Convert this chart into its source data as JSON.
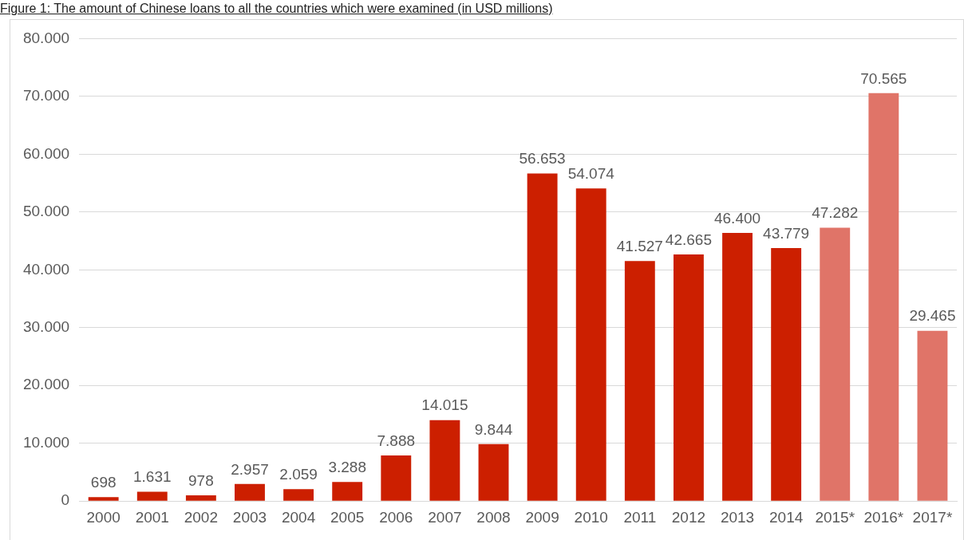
{
  "chart_data": {
    "type": "bar",
    "title": "Figure 1: The amount of Chinese loans to all the countries which were examined (in USD millions)",
    "categories": [
      "2000",
      "2001",
      "2002",
      "2003",
      "2004",
      "2005",
      "2006",
      "2007",
      "2008",
      "2009",
      "2010",
      "2011",
      "2012",
      "2013",
      "2014",
      "2015*",
      "2016*",
      "2017*"
    ],
    "values": [
      698,
      1631,
      978,
      2957,
      2059,
      3288,
      7888,
      14015,
      9844,
      56653,
      54074,
      41527,
      42665,
      46400,
      43779,
      47282,
      70565,
      29465
    ],
    "colors": [
      "#cc1f00",
      "#cc1f00",
      "#cc1f00",
      "#cc1f00",
      "#cc1f00",
      "#cc1f00",
      "#cc1f00",
      "#cc1f00",
      "#cc1f00",
      "#cc1f00",
      "#cc1f00",
      "#cc1f00",
      "#cc1f00",
      "#cc1f00",
      "#cc1f00",
      "#e07468",
      "#e07468",
      "#e07468"
    ],
    "value_labels": [
      "698",
      "1.631",
      "978",
      "2.957",
      "2.059",
      "3.288",
      "7.888",
      "14.015",
      "9.844",
      "56.653",
      "54.074",
      "41.527",
      "42.665",
      "46.400",
      "43.779",
      "47.282",
      "70.565",
      "29.465"
    ],
    "ylim": [
      0,
      80000
    ],
    "yticks": [
      0,
      {
        "value": 10000,
        "label": "10.000"
      },
      {
        "value": 20000,
        "label": "20.000"
      },
      {
        "value": 30000,
        "label": "30.000"
      },
      {
        "value": 40000,
        "label": "40.000"
      },
      {
        "value": 50000,
        "label": "50.000"
      },
      {
        "value": 60000,
        "label": "60.000"
      },
      {
        "value": 70000,
        "label": "70.000"
      },
      {
        "value": 80000,
        "label": "80.000"
      }
    ],
    "grid": "y",
    "legend": false
  }
}
